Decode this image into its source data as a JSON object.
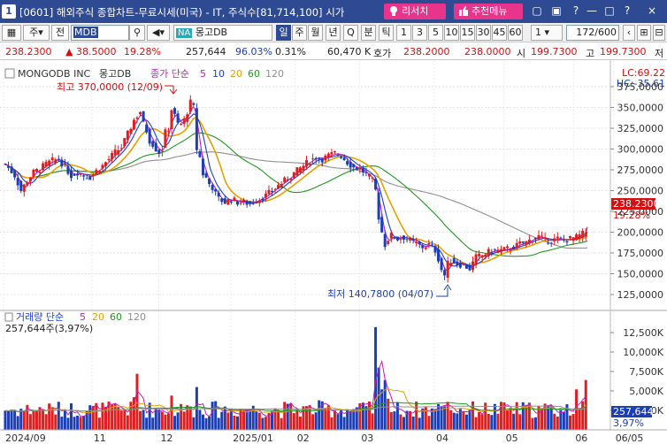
{
  "window": {
    "number": "1",
    "title": "[0601] 해외주식 종합차트-무료시세(미국) - IT, 주식수[81,714,100] 시가",
    "research_btn": "리서치",
    "recommend_btn": "추천메뉴",
    "controls": [
      "□",
      "□",
      "?",
      "—",
      "□",
      "?",
      "×"
    ]
  },
  "toolbar": {
    "code_value": "MDB",
    "market_badge": "NA",
    "stock_name": "몽고DB",
    "period_tabs": [
      "일",
      "주",
      "월",
      "년",
      "Q",
      "분",
      "틱"
    ],
    "period_selected": "일",
    "intervals": [
      "1",
      "3",
      "5",
      "10",
      "15",
      "30",
      "45",
      "60"
    ],
    "interval_value": "1",
    "range_value": "172/600",
    "labels": {
      "ju": "주",
      "jeon": "전"
    }
  },
  "quote": {
    "price": "238.2300",
    "change": "▲ 38.5000",
    "change_pct": "19.28%",
    "volume": "257,644",
    "vol_ratio": "96.03%",
    "turnover_pct": "0.31%",
    "amount": "60,470 K",
    "ask_label": "호가",
    "ask": "238.2000",
    "bid": "238.0000",
    "open_label": "시",
    "open": "199.7300",
    "high_label": "고",
    "high": "199.7300",
    "low_label": "저"
  },
  "chart_data": {
    "type": "candlestick",
    "security": "MONGODB INC",
    "security_kr": "몽고DB",
    "ma_legend": {
      "label": "종가 단순",
      "periods": [
        "5",
        "10",
        "20",
        "60",
        "120"
      ]
    },
    "lc": "LC:69.22",
    "hc": "HC:-35.61",
    "high_note": "최고 370,0000 (12/09)",
    "low_note": "최저 140,7800 (04/07)",
    "price_tag": "238.2300",
    "pct_tag": "19.28%",
    "price_ticks": [
      "375,0000",
      "350,0000",
      "325,0000",
      "300,0000",
      "275,0000",
      "250,0000",
      "225,0000",
      "200,0000",
      "175,0000",
      "150,0000",
      "125,0000"
    ],
    "price_tick_values": [
      375,
      350,
      325,
      300,
      275,
      250,
      225,
      200,
      175,
      150,
      125
    ],
    "close_series": [
      [
        0,
        282
      ],
      [
        6,
        268
      ],
      [
        10,
        250
      ],
      [
        14,
        262
      ],
      [
        18,
        272
      ],
      [
        22,
        276
      ],
      [
        26,
        282
      ],
      [
        30,
        286
      ],
      [
        34,
        288
      ],
      [
        38,
        278
      ],
      [
        42,
        268
      ],
      [
        46,
        272
      ],
      [
        50,
        268
      ],
      [
        54,
        266
      ],
      [
        58,
        274
      ],
      [
        62,
        280
      ],
      [
        66,
        288
      ],
      [
        70,
        296
      ],
      [
        74,
        302
      ],
      [
        78,
        318
      ],
      [
        82,
        335
      ],
      [
        86,
        345
      ],
      [
        88,
        330
      ],
      [
        90,
        322
      ],
      [
        92,
        310
      ],
      [
        94,
        306
      ],
      [
        96,
        300
      ],
      [
        98,
        296
      ],
      [
        100,
        300
      ],
      [
        102,
        320
      ],
      [
        104,
        325
      ],
      [
        106,
        348
      ],
      [
        108,
        340
      ],
      [
        110,
        330
      ],
      [
        112,
        330
      ],
      [
        114,
        335
      ],
      [
        116,
        345
      ],
      [
        118,
        356
      ],
      [
        120,
        350
      ],
      [
        122,
        300
      ],
      [
        124,
        290
      ],
      [
        126,
        270
      ],
      [
        128,
        265
      ],
      [
        130,
        258
      ],
      [
        132,
        254
      ],
      [
        134,
        246
      ],
      [
        136,
        240
      ],
      [
        140,
        236
      ],
      [
        144,
        240
      ],
      [
        148,
        236
      ],
      [
        152,
        236
      ],
      [
        156,
        234
      ],
      [
        160,
        238
      ],
      [
        166,
        244
      ],
      [
        170,
        250
      ],
      [
        174,
        256
      ],
      [
        178,
        262
      ],
      [
        182,
        268
      ],
      [
        186,
        274
      ],
      [
        190,
        280
      ],
      [
        194,
        286
      ],
      [
        198,
        290
      ],
      [
        202,
        288
      ],
      [
        206,
        292
      ],
      [
        210,
        295
      ],
      [
        214,
        292
      ],
      [
        218,
        284
      ],
      [
        222,
        278
      ],
      [
        226,
        276
      ],
      [
        230,
        270
      ],
      [
        234,
        262
      ],
      [
        236,
        250
      ],
      [
        238,
        218
      ],
      [
        240,
        200
      ],
      [
        242,
        185
      ],
      [
        244,
        192
      ],
      [
        246,
        196
      ],
      [
        250,
        192
      ],
      [
        254,
        194
      ],
      [
        258,
        190
      ],
      [
        262,
        186
      ],
      [
        266,
        182
      ],
      [
        270,
        185
      ],
      [
        274,
        178
      ],
      [
        276,
        168
      ],
      [
        278,
        155
      ],
      [
        280,
        148
      ],
      [
        282,
        162
      ],
      [
        284,
        166
      ],
      [
        288,
        162
      ],
      [
        292,
        160
      ],
      [
        296,
        156
      ],
      [
        300,
        170
      ],
      [
        304,
        172
      ],
      [
        308,
        176
      ],
      [
        312,
        178
      ],
      [
        316,
        178
      ],
      [
        320,
        180
      ],
      [
        324,
        182
      ],
      [
        328,
        186
      ],
      [
        332,
        188
      ],
      [
        336,
        192
      ],
      [
        340,
        195
      ],
      [
        344,
        190
      ],
      [
        348,
        190
      ],
      [
        352,
        192
      ],
      [
        356,
        190
      ],
      [
        360,
        192
      ],
      [
        364,
        194
      ],
      [
        368,
        198
      ],
      [
        370,
        200
      ],
      [
        371,
        238
      ]
    ],
    "ma_colors": {
      "ma5": "#c01cc0",
      "ma10": "#2040c8",
      "ma20": "#e8a000",
      "ma60": "#1e9a1e",
      "ma120": "#909090"
    },
    "x_ticks": [
      "2024/09",
      "11",
      "12",
      "2025/01",
      "02",
      "03",
      "04",
      "05",
      "06",
      "06/05"
    ],
    "volume_legend": {
      "label": "거래량 단순",
      "periods": [
        "5",
        "20",
        "60",
        "120"
      ]
    },
    "volume_label": "257,644주(3,97%)",
    "volume_tag": "257,644",
    "volume_pct_tag": "3,97%",
    "volume_ticks": [
      "12,500K",
      "10,000K",
      "7,500K",
      "5,000K",
      "2,500K"
    ],
    "volume_tick_values": [
      12500,
      10000,
      7500,
      5000,
      2500
    ]
  }
}
